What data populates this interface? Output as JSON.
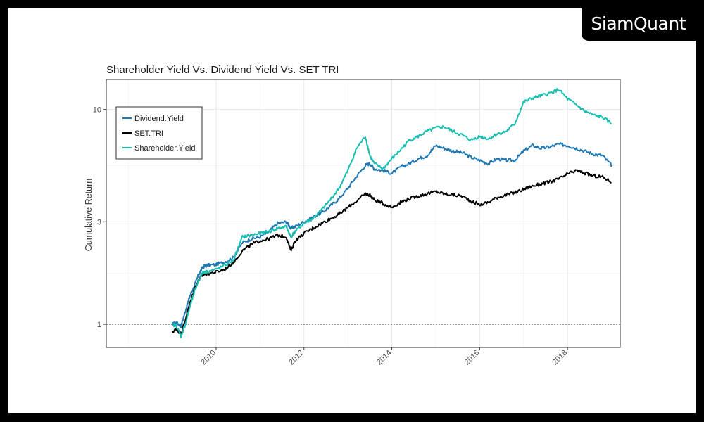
{
  "brand": {
    "name": "SiamQuant"
  },
  "chart_data": {
    "type": "line",
    "title": "Shareholder Yield Vs. Dividend Yield Vs. SET TRI",
    "xlabel": "",
    "ylabel": "Cumulative Return",
    "y_scale": "log",
    "ylim": [
      0.78,
      13.8
    ],
    "xlim": [
      2007.5,
      2019.2
    ],
    "y_ticks": [
      1,
      3,
      10
    ],
    "y_tick_labels": [
      "1",
      "3",
      "10"
    ],
    "x_ticks": [
      2010,
      2012,
      2014,
      2016,
      2018
    ],
    "x_tick_labels": [
      "2010",
      "2012",
      "2014",
      "2016",
      "2018"
    ],
    "reference_line": {
      "y": 1,
      "style": "dotted"
    },
    "grid": true,
    "legend_position": "top-left",
    "series": [
      {
        "name": "Dividend.Yield",
        "color": "#1f78b4",
        "x": [
          2009.0,
          2009.1,
          2009.2,
          2009.3,
          2009.4,
          2009.5,
          2009.6,
          2009.7,
          2009.8,
          2010.0,
          2010.2,
          2010.4,
          2010.6,
          2010.8,
          2011.0,
          2011.2,
          2011.4,
          2011.6,
          2011.7,
          2011.8,
          2012.0,
          2012.2,
          2012.4,
          2012.6,
          2012.8,
          2013.0,
          2013.2,
          2013.4,
          2013.5,
          2013.6,
          2013.8,
          2014.0,
          2014.2,
          2014.4,
          2014.6,
          2014.8,
          2015.0,
          2015.2,
          2015.4,
          2015.6,
          2015.8,
          2016.0,
          2016.2,
          2016.4,
          2016.6,
          2016.8,
          2017.0,
          2017.2,
          2017.4,
          2017.6,
          2017.8,
          2018.0,
          2018.2,
          2018.4,
          2018.6,
          2018.8,
          2019.0
        ],
        "values": [
          1.0,
          1.02,
          0.98,
          1.15,
          1.35,
          1.5,
          1.7,
          1.85,
          1.88,
          1.9,
          1.95,
          2.05,
          2.4,
          2.5,
          2.55,
          2.7,
          2.95,
          3.0,
          2.8,
          2.85,
          3.0,
          3.15,
          3.3,
          3.55,
          3.85,
          4.3,
          4.9,
          5.5,
          5.6,
          5.3,
          5.2,
          5.05,
          5.4,
          5.6,
          5.9,
          6.1,
          6.8,
          6.6,
          6.4,
          6.3,
          6.0,
          5.8,
          5.6,
          5.9,
          5.8,
          5.8,
          6.4,
          6.8,
          6.6,
          6.7,
          6.9,
          6.8,
          6.6,
          6.4,
          6.2,
          6.1,
          5.5
        ]
      },
      {
        "name": "SET.TRI",
        "color": "#000000",
        "x": [
          2009.0,
          2009.1,
          2009.2,
          2009.3,
          2009.4,
          2009.5,
          2009.6,
          2009.7,
          2009.8,
          2010.0,
          2010.2,
          2010.4,
          2010.6,
          2010.8,
          2011.0,
          2011.2,
          2011.4,
          2011.6,
          2011.7,
          2011.8,
          2012.0,
          2012.2,
          2012.4,
          2012.6,
          2012.8,
          2013.0,
          2013.2,
          2013.4,
          2013.5,
          2013.6,
          2013.8,
          2014.0,
          2014.2,
          2014.4,
          2014.6,
          2014.8,
          2015.0,
          2015.2,
          2015.4,
          2015.6,
          2015.8,
          2016.0,
          2016.2,
          2016.4,
          2016.6,
          2016.8,
          2017.0,
          2017.2,
          2017.4,
          2017.6,
          2017.8,
          2018.0,
          2018.2,
          2018.4,
          2018.6,
          2018.8,
          2019.0
        ],
        "values": [
          0.92,
          0.95,
          0.9,
          1.05,
          1.25,
          1.45,
          1.6,
          1.7,
          1.72,
          1.75,
          1.8,
          1.95,
          2.2,
          2.35,
          2.45,
          2.5,
          2.6,
          2.55,
          2.2,
          2.45,
          2.65,
          2.8,
          2.95,
          3.1,
          3.25,
          3.5,
          3.75,
          4.05,
          4.0,
          3.8,
          3.65,
          3.5,
          3.7,
          3.85,
          3.95,
          4.05,
          4.15,
          4.05,
          4.0,
          3.95,
          3.75,
          3.6,
          3.7,
          3.9,
          4.0,
          4.1,
          4.25,
          4.4,
          4.5,
          4.6,
          4.75,
          5.0,
          5.2,
          5.05,
          4.9,
          4.85,
          4.6
        ]
      },
      {
        "name": "Shareholder.Yield",
        "color": "#17bfb0",
        "x": [
          2009.0,
          2009.1,
          2009.2,
          2009.3,
          2009.4,
          2009.5,
          2009.6,
          2009.7,
          2009.8,
          2010.0,
          2010.2,
          2010.4,
          2010.6,
          2010.8,
          2011.0,
          2011.2,
          2011.4,
          2011.6,
          2011.7,
          2011.8,
          2012.0,
          2012.2,
          2012.4,
          2012.6,
          2012.8,
          2013.0,
          2013.2,
          2013.4,
          2013.5,
          2013.6,
          2013.8,
          2014.0,
          2014.2,
          2014.4,
          2014.6,
          2014.8,
          2015.0,
          2015.2,
          2015.4,
          2015.6,
          2015.8,
          2016.0,
          2016.2,
          2016.4,
          2016.6,
          2016.8,
          2017.0,
          2017.2,
          2017.4,
          2017.6,
          2017.8,
          2018.0,
          2018.2,
          2018.4,
          2018.6,
          2018.8,
          2019.0
        ],
        "values": [
          1.0,
          0.98,
          0.88,
          1.0,
          1.2,
          1.4,
          1.6,
          1.75,
          1.76,
          1.8,
          1.88,
          2.0,
          2.55,
          2.6,
          2.65,
          2.7,
          2.8,
          2.85,
          2.55,
          2.7,
          2.95,
          3.1,
          3.4,
          3.8,
          4.3,
          5.2,
          6.6,
          7.5,
          6.1,
          5.6,
          5.3,
          5.9,
          6.5,
          7.2,
          7.5,
          7.9,
          8.2,
          8.3,
          7.9,
          7.6,
          7.2,
          7.5,
          7.3,
          7.7,
          7.9,
          8.6,
          10.8,
          11.3,
          11.6,
          11.9,
          12.4,
          11.2,
          10.5,
          9.8,
          9.4,
          9.2,
          8.6
        ]
      }
    ]
  }
}
